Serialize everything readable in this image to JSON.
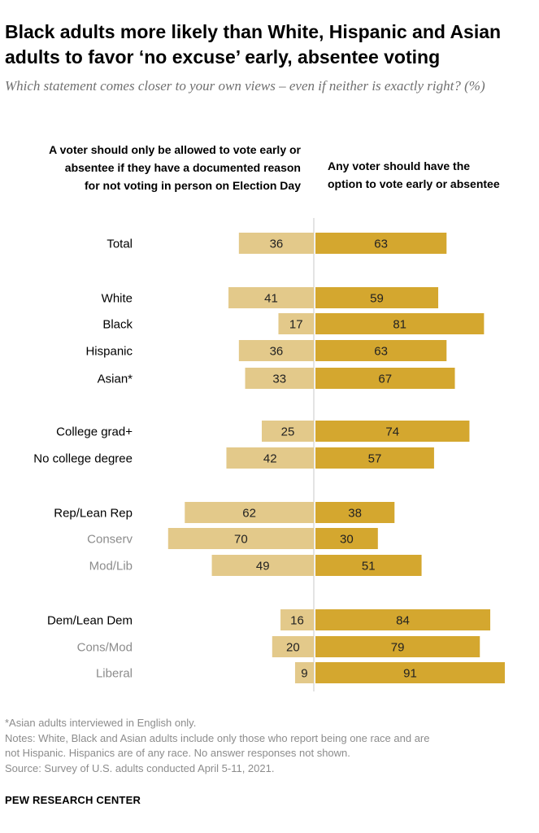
{
  "title": "Black adults more likely than White, Hispanic and Asian adults to favor ‘no excuse’ early, absentee voting",
  "subtitle": "Which statement comes closer to your own views – even if neither is exactly right? (%)",
  "colors": {
    "left_bar": "#e3c98a",
    "right_bar": "#d4a72f",
    "primary_label": "#000000",
    "secondary_label": "#8c8c8c",
    "divider": "#c8c8c8"
  },
  "chart_data": {
    "type": "bar",
    "orientation": "horizontal-diverging",
    "series": [
      {
        "name": "A voter should only be allowed to vote early or absentee if they have a documented reason for not voting in person on Election Day",
        "side": "left",
        "values": [
          36,
          41,
          17,
          36,
          33,
          25,
          42,
          62,
          70,
          49,
          16,
          20,
          9
        ]
      },
      {
        "name": "Any voter should have the option to vote early or absentee",
        "side": "right",
        "values": [
          63,
          59,
          81,
          63,
          67,
          74,
          57,
          38,
          30,
          51,
          84,
          79,
          91
        ]
      }
    ],
    "categories": [
      "Total",
      "White",
      "Black",
      "Hispanic",
      "Asian*",
      "College grad+",
      "No college degree",
      "Rep/Lean Rep",
      "Conserv",
      "Mod/Lib",
      "Dem/Lean Dem",
      "Cons/Mod",
      "Liberal"
    ],
    "category_style": [
      "primary",
      "primary",
      "primary",
      "primary",
      "primary",
      "primary",
      "primary",
      "primary",
      "secondary",
      "secondary",
      "primary",
      "secondary",
      "secondary"
    ],
    "groups": [
      [
        0
      ],
      [
        1,
        2,
        3,
        4
      ],
      [
        5,
        6
      ],
      [
        7,
        8,
        9
      ],
      [
        10,
        11,
        12
      ]
    ],
    "xlim": [
      0,
      100
    ],
    "grid": false,
    "legend": "column headers above bars"
  },
  "footnotes": {
    "asterisk": "*Asian adults interviewed in English only.",
    "notes_line1": "Notes: White, Black and Asian adults include only those who report being one race and are",
    "notes_line2": "not Hispanic. Hispanics are of any race. No answer responses not shown.",
    "source": "Source: Survey of U.S. adults conducted April 5-11, 2021."
  },
  "brand": "PEW RESEARCH CENTER"
}
